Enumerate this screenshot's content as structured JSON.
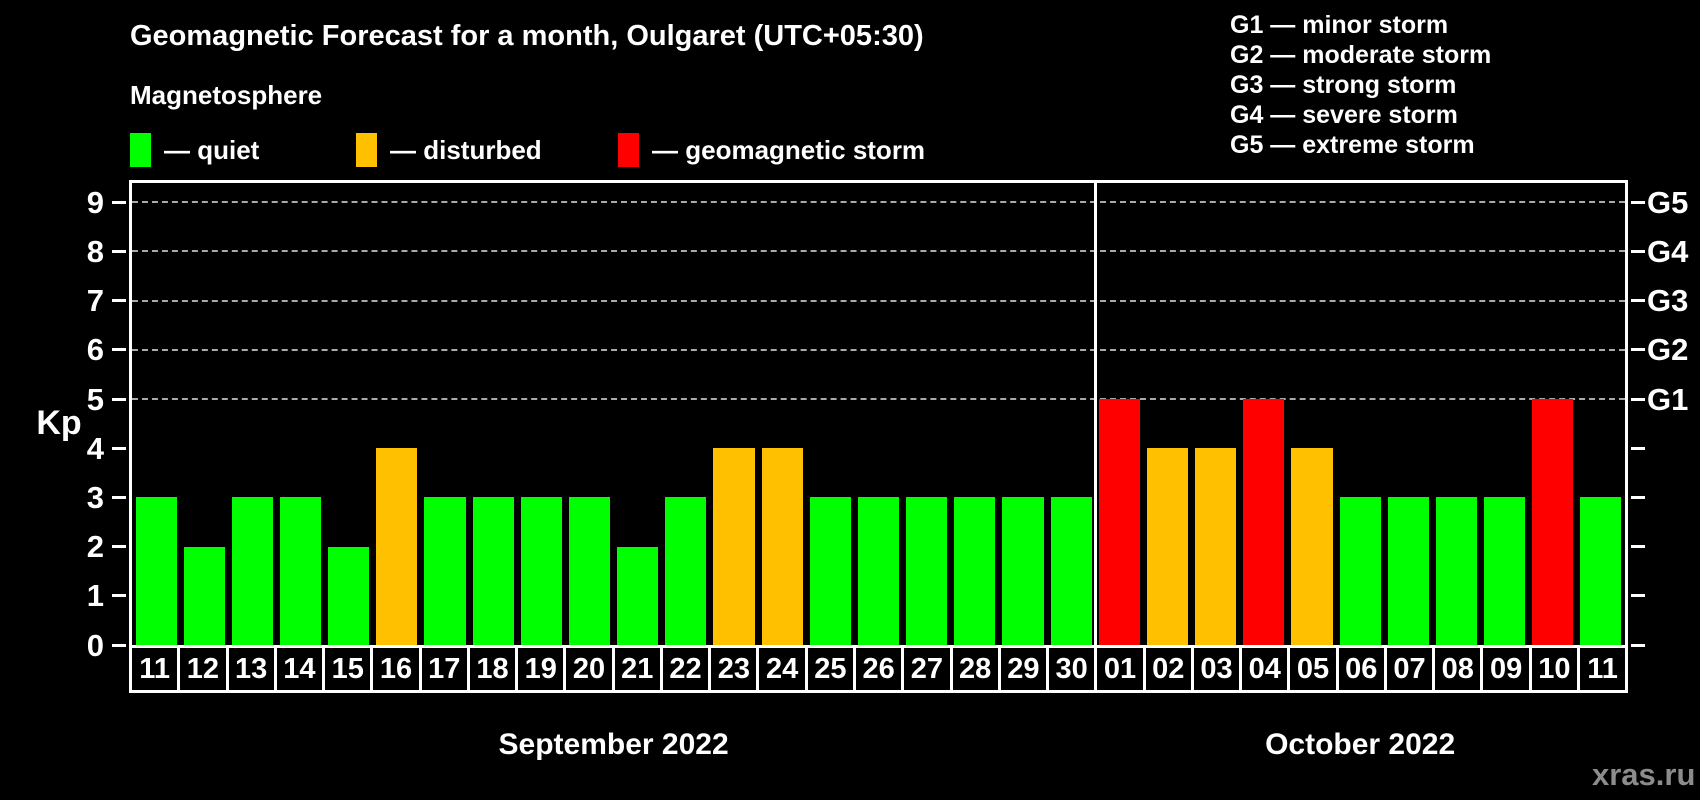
{
  "title": "Geomagnetic Forecast for a month, Oulgaret (UTC+05:30)",
  "subtitle": "Magnetosphere",
  "legend": {
    "items": [
      {
        "key": "quiet",
        "label": "— quiet"
      },
      {
        "key": "disturbed",
        "label": "— disturbed"
      },
      {
        "key": "storm",
        "label": "— geomagnetic storm"
      }
    ]
  },
  "storm_scale_legend": [
    "G1 — minor storm",
    "G2 — moderate storm",
    "G3 — strong storm",
    "G4 — severe storm",
    "G5 — extreme storm"
  ],
  "watermark": "xras.ru",
  "colors": {
    "quiet": "#00ff00",
    "disturbed": "#ffc000",
    "storm": "#ff0000",
    "background": "#000000",
    "grid": "#aaaaaa",
    "axis": "#ffffff",
    "watermark": "#8c8c8c"
  },
  "chart_data": {
    "type": "bar",
    "title": "Geomagnetic Forecast for a month, Oulgaret (UTC+05:30)",
    "ylabel": "Kp",
    "ylim": [
      0,
      9
    ],
    "yticks": [
      0,
      1,
      2,
      3,
      4,
      5,
      6,
      7,
      8,
      9
    ],
    "gridlines_kp": [
      5,
      6,
      7,
      8,
      9
    ],
    "grid": "dashed-horizontal",
    "legend_position": "top",
    "right_axis": [
      {
        "kp": 9,
        "label": "G5"
      },
      {
        "kp": 8,
        "label": "G4"
      },
      {
        "kp": 7,
        "label": "G3"
      },
      {
        "kp": 6,
        "label": "G2"
      },
      {
        "kp": 5,
        "label": "G1"
      }
    ],
    "months": [
      {
        "label": "September 2022",
        "days": [
          {
            "day": "11",
            "kp": 3,
            "level": "quiet"
          },
          {
            "day": "12",
            "kp": 2,
            "level": "quiet"
          },
          {
            "day": "13",
            "kp": 3,
            "level": "quiet"
          },
          {
            "day": "14",
            "kp": 3,
            "level": "quiet"
          },
          {
            "day": "15",
            "kp": 2,
            "level": "quiet"
          },
          {
            "day": "16",
            "kp": 4,
            "level": "disturbed"
          },
          {
            "day": "17",
            "kp": 3,
            "level": "quiet"
          },
          {
            "day": "18",
            "kp": 3,
            "level": "quiet"
          },
          {
            "day": "19",
            "kp": 3,
            "level": "quiet"
          },
          {
            "day": "20",
            "kp": 3,
            "level": "quiet"
          },
          {
            "day": "21",
            "kp": 2,
            "level": "quiet"
          },
          {
            "day": "22",
            "kp": 3,
            "level": "quiet"
          },
          {
            "day": "23",
            "kp": 4,
            "level": "disturbed"
          },
          {
            "day": "24",
            "kp": 4,
            "level": "disturbed"
          },
          {
            "day": "25",
            "kp": 3,
            "level": "quiet"
          },
          {
            "day": "26",
            "kp": 3,
            "level": "quiet"
          },
          {
            "day": "27",
            "kp": 3,
            "level": "quiet"
          },
          {
            "day": "28",
            "kp": 3,
            "level": "quiet"
          },
          {
            "day": "29",
            "kp": 3,
            "level": "quiet"
          },
          {
            "day": "30",
            "kp": 3,
            "level": "quiet"
          }
        ]
      },
      {
        "label": "October 2022",
        "days": [
          {
            "day": "01",
            "kp": 5,
            "level": "storm"
          },
          {
            "day": "02",
            "kp": 4,
            "level": "disturbed"
          },
          {
            "day": "03",
            "kp": 4,
            "level": "disturbed"
          },
          {
            "day": "04",
            "kp": 5,
            "level": "storm"
          },
          {
            "day": "05",
            "kp": 4,
            "level": "disturbed"
          },
          {
            "day": "06",
            "kp": 3,
            "level": "quiet"
          },
          {
            "day": "07",
            "kp": 3,
            "level": "quiet"
          },
          {
            "day": "08",
            "kp": 3,
            "level": "quiet"
          },
          {
            "day": "09",
            "kp": 3,
            "level": "quiet"
          },
          {
            "day": "10",
            "kp": 5,
            "level": "storm"
          },
          {
            "day": "11",
            "kp": 3,
            "level": "quiet"
          }
        ]
      }
    ]
  }
}
